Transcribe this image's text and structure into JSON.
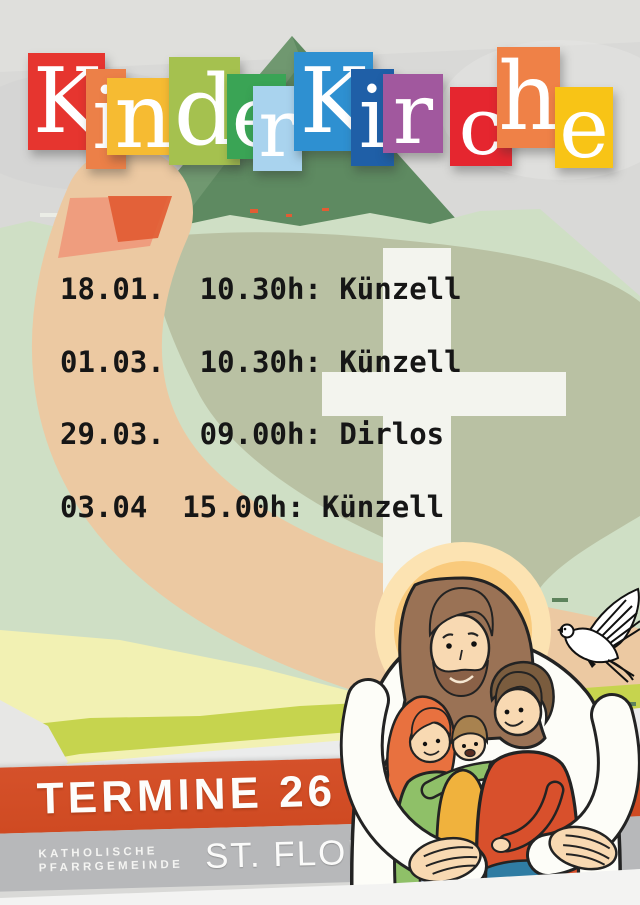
{
  "title": {
    "word": "KinderKirche",
    "letters": [
      {
        "ch": "K",
        "color": "#e6352f"
      },
      {
        "ch": "i",
        "color": "#ec8048"
      },
      {
        "ch": "n",
        "color": "#f6bb32"
      },
      {
        "ch": "d",
        "color": "#a5c14f"
      },
      {
        "ch": "e",
        "color": "#3aa455"
      },
      {
        "ch": "r",
        "color": "#a9d3ee"
      },
      {
        "ch": "K",
        "color": "#2e90d1"
      },
      {
        "ch": "i",
        "color": "#1f5fa7"
      },
      {
        "ch": "r",
        "color": "#a1589e"
      },
      {
        "ch": "c",
        "color": "#e5262f"
      },
      {
        "ch": "h",
        "color": "#ef8147"
      },
      {
        "ch": "e",
        "color": "#f8c416"
      }
    ]
  },
  "schedule": {
    "items": [
      {
        "date": "18.01.",
        "time": "10.30h",
        "place": "Künzell",
        "line": "18.01.  10.30h: Künzell"
      },
      {
        "date": "01.03.",
        "time": "10.30h",
        "place": "Künzell",
        "line": "01.03.  10.30h: Künzell"
      },
      {
        "date": "29.03.",
        "time": "09.00h",
        "place": "Dirlos",
        "line": "29.03.  09.00h: Dirlos"
      },
      {
        "date": "03.04",
        "time": "15.00h",
        "place": "Künzell",
        "line": "03.04  15.00h: Künzell"
      }
    ]
  },
  "banner": {
    "termine": "TERMINE 26",
    "org_line1": "KATHOLISCHE",
    "org_line2": "PFARRGEMEINDE",
    "parish": "ST. FLORA",
    "band_color": "#d5512a",
    "gray_band_color": "#b7b8ba"
  },
  "graphics": {
    "cross_icon": "latin-cross",
    "dove_icon": "flying-dove",
    "halo_icon": "sun-halo",
    "illustration": "jesus-embracing-family",
    "roof_shape": "green-roof-triangle"
  },
  "palette": {
    "background_gray": "#d9d9d7",
    "roof_green": "#5e8a61",
    "pale_green": "#cfdfc5",
    "sage_green": "#b9c1a3",
    "peach_swoosh": "#ecc9a2",
    "accent_red_orange": "#e25c33",
    "cross_white": "#f3f4ee",
    "pale_yellow": "#f2f1b3",
    "yellow_green_stripe": "#c6d44e",
    "text_black": "#161616"
  }
}
